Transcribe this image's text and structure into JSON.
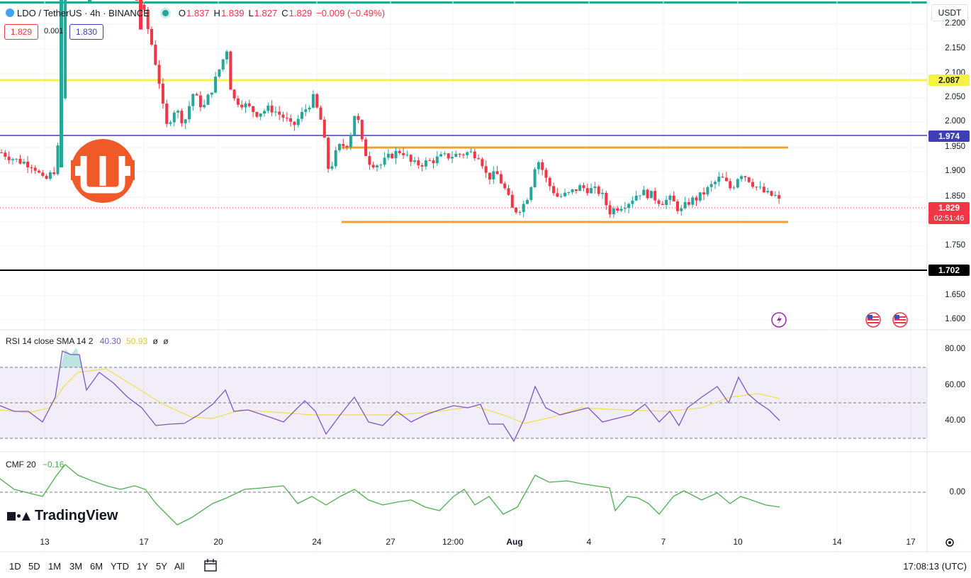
{
  "header": {
    "symbol": "LDO / TetherUS · 4h · BINANCE",
    "o_label": "O",
    "o_value": "1.837",
    "h_label": "H",
    "h_value": "1.839",
    "l_label": "L",
    "l_value": "1.827",
    "c_label": "C",
    "c_value": "1.829",
    "change": "−0.009 (−0.49%)"
  },
  "order_panel": {
    "sell_price": "1.829",
    "spread": "0.001",
    "buy_price": "1.830"
  },
  "currency_button": "USDT",
  "price_axis": [
    "2.200",
    "2.150",
    "2.100",
    "2.050",
    "2.000",
    "1.950",
    "1.900",
    "1.850",
    "1.750",
    "1.650",
    "1.600"
  ],
  "level_tags": {
    "yellow": "2.087",
    "blue": "1.974",
    "current": "1.829",
    "countdown": "02:51:46",
    "black": "1.702"
  },
  "colors": {
    "up": "#26a69a",
    "down": "#f23645",
    "yellow_line": "#f5f246",
    "blue_line": "#3f3fb5",
    "orange_line": "#f0a030",
    "rsi": "#7e57c2",
    "rsi_ma": "#f0e050",
    "cmf": "#4caf50"
  },
  "rsi_panel": {
    "title": "RSI 14 close SMA 14 2",
    "rsi_value": "40.30",
    "sma_value": "50.93",
    "extra1": "ø",
    "extra2": "ø",
    "axis": [
      "80.00",
      "60.00",
      "40.00"
    ]
  },
  "cmf_panel": {
    "title": "CMF 20",
    "value": "−0.16",
    "axis": [
      "0.00"
    ]
  },
  "time_axis": [
    "13",
    "17",
    "20",
    "24",
    "27",
    "12:00",
    "Aug",
    "4",
    "7",
    "10",
    "14",
    "17"
  ],
  "timeframes": [
    "1D",
    "5D",
    "1M",
    "3M",
    "6M",
    "YTD",
    "1Y",
    "5Y",
    "All"
  ],
  "clock": "17:08:13 (UTC)",
  "branding": "TradingView",
  "icons": [
    "settings-icon",
    "calendar-range-icon",
    "lightning-icon",
    "us-flag-icon"
  ]
}
